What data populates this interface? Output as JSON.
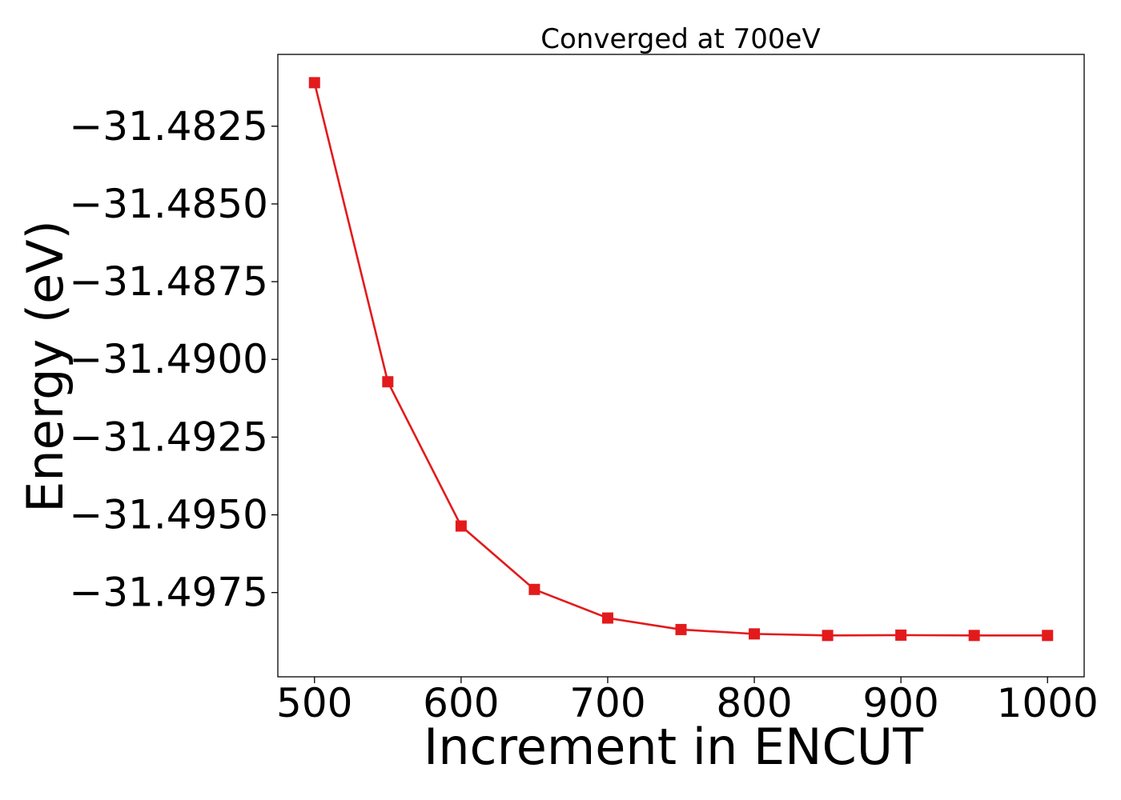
{
  "chart_data": {
    "type": "line",
    "title": "Converged at 700eV",
    "xlabel": "Increment in ENCUT",
    "ylabel": "Energy (eV)",
    "x": [
      500,
      550,
      600,
      650,
      700,
      750,
      800,
      850,
      900,
      950,
      1000
    ],
    "series": [
      {
        "values": [
          -31.4811,
          -31.49072,
          -31.49536,
          -31.4974,
          -31.49832,
          -31.49869,
          -31.49883,
          -31.49888,
          -31.49887,
          -31.49888,
          -31.49888
        ],
        "color": "#e31a1c",
        "marker": "square"
      }
    ],
    "xlim": [
      475,
      1025
    ],
    "ylim": [
      -31.50021,
      -31.48019
    ],
    "xticks": [
      500,
      600,
      700,
      800,
      900,
      1000
    ],
    "xtick_labels": [
      "500",
      "600",
      "700",
      "800",
      "900",
      "1000"
    ],
    "yticks": [
      -31.4825,
      -31.485,
      -31.4875,
      -31.49,
      -31.4925,
      -31.495,
      -31.4975
    ],
    "ytick_labels": [
      "−31.4825",
      "−31.4850",
      "−31.4875",
      "−31.4900",
      "−31.4925",
      "−31.4950",
      "−31.4975"
    ],
    "grid": false,
    "legend": false
  }
}
